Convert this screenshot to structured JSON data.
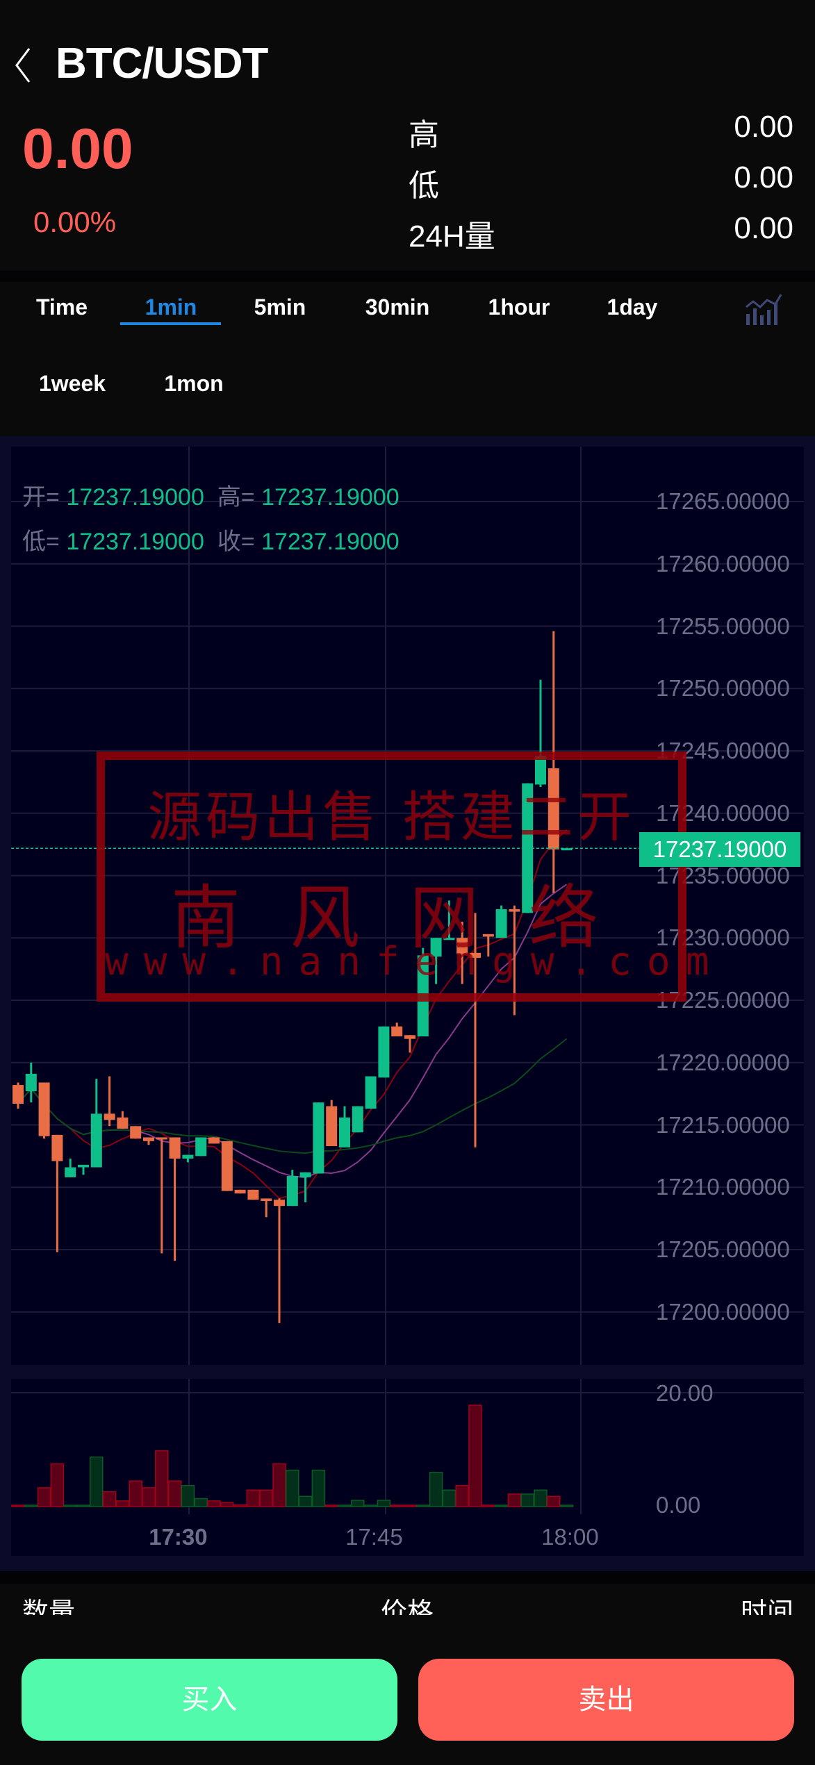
{
  "header": {
    "title": "BTC/USDT",
    "back_icon": "chevron-left-icon"
  },
  "ticker": {
    "last_price": "0.00",
    "change_pct": "0.00%",
    "stats": [
      {
        "label": "高",
        "value": "0.00"
      },
      {
        "label": "低",
        "value": "0.00"
      },
      {
        "label": "24H量",
        "value": "0.00"
      }
    ]
  },
  "intervals": {
    "tabs": [
      "Time",
      "1min",
      "5min",
      "30min",
      "1hour",
      "1day",
      "1week",
      "1mon"
    ],
    "active": "1min",
    "indicator_icon": "chart-indicator-icon"
  },
  "colors": {
    "up": "#0fbf8a",
    "down": "#ea6e45",
    "price_down": "#ff5f57",
    "accent": "#1e88e5",
    "buy": "#52fbab",
    "sell": "#ff6058",
    "vol_up": "#03301a",
    "vol_down": "#5e0018",
    "ma5": "#8b0010",
    "ma10": "#8a3a8a",
    "ma30": "#0a4a1a"
  },
  "ohlc_legend": {
    "open_label": "开=",
    "open": "17237.19000",
    "high_label": "高=",
    "high": "17237.19000",
    "low_label": "低=",
    "low": "17237.19000",
    "close_label": "收=",
    "close": "17237.19000"
  },
  "current_price_tag": "17237.19000",
  "watermark": {
    "line1": "源码出售 搭建二开",
    "line2": "南 风 网 络",
    "line3": "www.nanfengw.com"
  },
  "chart_data": {
    "type": "candlestick",
    "price_axis_labels": [
      "17265.00000",
      "17260.00000",
      "17255.00000",
      "17250.00000",
      "17245.00000",
      "17240.00000",
      "17235.00000",
      "17230.00000",
      "17225.00000",
      "17220.00000",
      "17215.00000",
      "17210.00000",
      "17205.00000",
      "17200.00000"
    ],
    "price_axis_values": [
      17265,
      17260,
      17255,
      17250,
      17245,
      17240,
      17235,
      17230,
      17225,
      17220,
      17215,
      17210,
      17205,
      17200
    ],
    "volume_axis_labels": [
      "20.00",
      "0.00"
    ],
    "volume_axis_range": [
      0,
      20
    ],
    "time_labels": [
      "17:30",
      "17:45",
      "18:00"
    ],
    "time_label_candle_index": [
      13,
      28,
      43
    ],
    "candle_fields": [
      "open",
      "high",
      "low",
      "close"
    ],
    "candles": [
      [
        17218.2,
        17218.4,
        17216.3,
        17216.7
      ],
      [
        17217.7,
        17220.0,
        17216.8,
        17219.1
      ],
      [
        17218.4,
        17218.4,
        17213.9,
        17214.1
      ],
      [
        17214.2,
        17214.2,
        17204.8,
        17212.1
      ],
      [
        17210.8,
        17212.3,
        17210.8,
        17211.6
      ],
      [
        17211.6,
        17211.8,
        17211.0,
        17211.8
      ],
      [
        17211.6,
        17218.7,
        17211.6,
        17215.9
      ],
      [
        17215.9,
        17218.9,
        17214.9,
        17215.4
      ],
      [
        17215.6,
        17216.1,
        17214.7,
        17214.7
      ],
      [
        17214.9,
        17214.9,
        17213.9,
        17213.9
      ],
      [
        17214.0,
        17214.0,
        17213.4,
        17213.7
      ],
      [
        17214.0,
        17214.0,
        17204.7,
        17213.9
      ],
      [
        17214.0,
        17214.0,
        17204.1,
        17212.3
      ],
      [
        17212.3,
        17212.6,
        17212.0,
        17212.6
      ],
      [
        17212.5,
        17214.0,
        17212.5,
        17214.0
      ],
      [
        17214.0,
        17214.0,
        17213.5,
        17213.5
      ],
      [
        17213.7,
        17213.7,
        17209.7,
        17209.7
      ],
      [
        17209.8,
        17209.8,
        17209.5,
        17209.5
      ],
      [
        17209.8,
        17209.8,
        17209.0,
        17209.0
      ],
      [
        17209.1,
        17209.1,
        17207.6,
        17208.9
      ],
      [
        17209.0,
        17209.1,
        17199.1,
        17208.5
      ],
      [
        17208.5,
        17211.4,
        17208.5,
        17210.9
      ],
      [
        17210.8,
        17211.2,
        17208.8,
        17211.2
      ],
      [
        17211.1,
        17216.8,
        17211.1,
        17216.8
      ],
      [
        17216.5,
        17217.0,
        17213.3,
        17213.3
      ],
      [
        17213.2,
        17216.5,
        17213.2,
        17215.6
      ],
      [
        17214.4,
        17216.5,
        17214.4,
        17216.5
      ],
      [
        17216.3,
        17218.9,
        17216.3,
        17218.9
      ],
      [
        17218.8,
        17222.9,
        17218.8,
        17222.9
      ],
      [
        17222.9,
        17223.2,
        17222.1,
        17222.1
      ],
      [
        17222.2,
        17222.2,
        17220.8,
        17221.9
      ],
      [
        17222.1,
        17229.2,
        17222.1,
        17228.6
      ],
      [
        17228.5,
        17230.0,
        17226.3,
        17230.0
      ],
      [
        17229.9,
        17233.0,
        17229.9,
        17230.0
      ],
      [
        17230.0,
        17231.3,
        17226.3,
        17228.7
      ],
      [
        17228.8,
        17232.0,
        17213.2,
        17228.4
      ],
      [
        17230.3,
        17230.3,
        17228.5,
        17230.1
      ],
      [
        17230.0,
        17232.6,
        17230.0,
        17232.3
      ],
      [
        17232.3,
        17232.6,
        17223.8,
        17232.1
      ],
      [
        17232.0,
        17242.4,
        17232.0,
        17242.4
      ],
      [
        17242.3,
        17250.7,
        17242.1,
        17244.6
      ],
      [
        17243.6,
        17254.6,
        17233.6,
        17237.1
      ],
      [
        17237.19,
        17237.19,
        17237.19,
        17237.19
      ]
    ],
    "volumes": [
      0.2,
      0.2,
      3.3,
      7.5,
      0.2,
      0.2,
      8.7,
      2.6,
      1.0,
      4.5,
      3.3,
      9.8,
      4.5,
      3.7,
      1.4,
      1.0,
      0.7,
      0.3,
      2.9,
      2.9,
      7.5,
      6.4,
      1.8,
      6.4,
      0.2,
      0.2,
      1.1,
      0.2,
      1.1,
      0.2,
      0.2,
      0.2,
      6.0,
      2.9,
      3.7,
      17.8,
      0.2,
      0.2,
      2.2,
      2.2,
      2.9,
      1.8,
      0.0
    ],
    "moving_averages": [
      5,
      10,
      30
    ],
    "grid": true
  },
  "trades": {
    "columns": [
      "数量",
      "价格",
      "时间"
    ]
  },
  "actions": {
    "buy": "买入",
    "sell": "卖出"
  }
}
